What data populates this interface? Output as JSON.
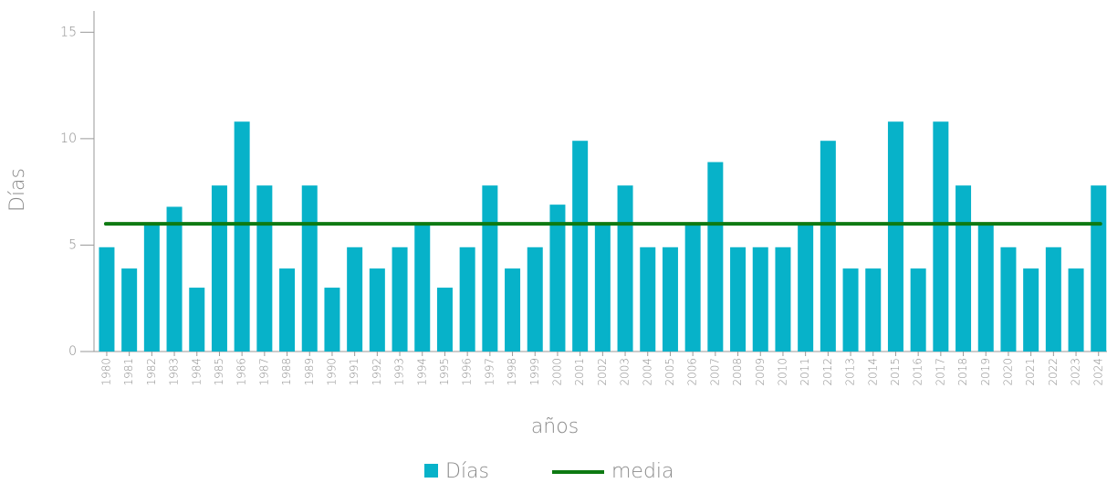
{
  "chart_data": {
    "type": "bar",
    "x_label": "años",
    "y_label": "Días",
    "categories": [
      "1980",
      "1981",
      "1982",
      "1983",
      "1984",
      "1985",
      "1986",
      "1987",
      "1988",
      "1989",
      "1990",
      "1991",
      "1992",
      "1993",
      "1994",
      "1995",
      "1996",
      "1997",
      "1998",
      "1999",
      "2000",
      "2001",
      "2002",
      "2003",
      "2004",
      "2005",
      "2006",
      "2007",
      "2008",
      "2009",
      "2010",
      "2011",
      "2012",
      "2013",
      "2014",
      "2015",
      "2016",
      "2017",
      "2018",
      "2019",
      "2020",
      "2021",
      "2022",
      "2023",
      "2024"
    ],
    "series": [
      {
        "name": "Días",
        "color": "#07b2c9",
        "values": [
          4.9,
          3.9,
          6,
          6.8,
          3,
          7.8,
          10.8,
          7.8,
          3.9,
          7.8,
          3,
          4.9,
          3.9,
          4.9,
          6,
          3,
          4.9,
          7.8,
          3.9,
          4.9,
          6.9,
          9.9,
          6,
          7.8,
          4.9,
          4.9,
          6,
          8.9,
          4.9,
          4.9,
          4.9,
          6,
          9.9,
          3.9,
          3.9,
          10.8,
          3.9,
          10.8,
          7.8,
          6,
          4.9,
          3.9,
          4.9,
          3.9,
          7.8
        ]
      }
    ],
    "reference_line": {
      "name": "media",
      "color": "#0e7a12",
      "value": 6
    },
    "ylim": [
      0,
      16
    ],
    "yticks": [
      0,
      5,
      10,
      15
    ]
  }
}
